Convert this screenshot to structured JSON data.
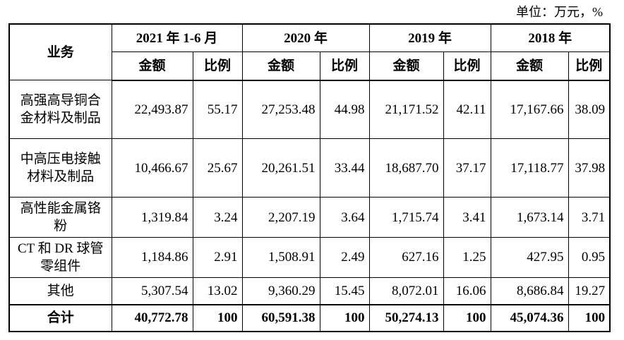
{
  "unit_note": "单位：万元，%",
  "table": {
    "business_header": "业务",
    "periods": [
      "2021 年 1-6 月",
      "2020 年",
      "2019 年",
      "2018 年"
    ],
    "amount_label": "金额",
    "ratio_label": "比例",
    "rows": [
      {
        "name": "高强高导铜合金材料及制品",
        "values": [
          "22,493.87",
          "55.17",
          "27,253.48",
          "44.98",
          "21,171.52",
          "42.11",
          "17,167.66",
          "38.09"
        ]
      },
      {
        "name": "中高压电接触材料及制品",
        "values": [
          "10,466.67",
          "25.67",
          "20,261.51",
          "33.44",
          "18,687.70",
          "37.17",
          "17,118.77",
          "37.98"
        ]
      },
      {
        "name": "高性能金属铬粉",
        "values": [
          "1,319.84",
          "3.24",
          "2,207.19",
          "3.64",
          "1,715.74",
          "3.41",
          "1,673.14",
          "3.71"
        ]
      },
      {
        "name": "CT 和 DR 球管零组件",
        "values": [
          "1,184.86",
          "2.91",
          "1,508.91",
          "2.49",
          "627.16",
          "1.25",
          "427.95",
          "0.95"
        ]
      },
      {
        "name": "其他",
        "values": [
          "5,307.54",
          "13.02",
          "9,360.29",
          "15.45",
          "8,072.01",
          "16.06",
          "8,686.84",
          "19.27"
        ]
      }
    ],
    "total": {
      "name": "合计",
      "values": [
        "40,772.78",
        "100",
        "60,591.38",
        "100",
        "50,274.13",
        "100",
        "45,074.36",
        "100"
      ]
    }
  }
}
